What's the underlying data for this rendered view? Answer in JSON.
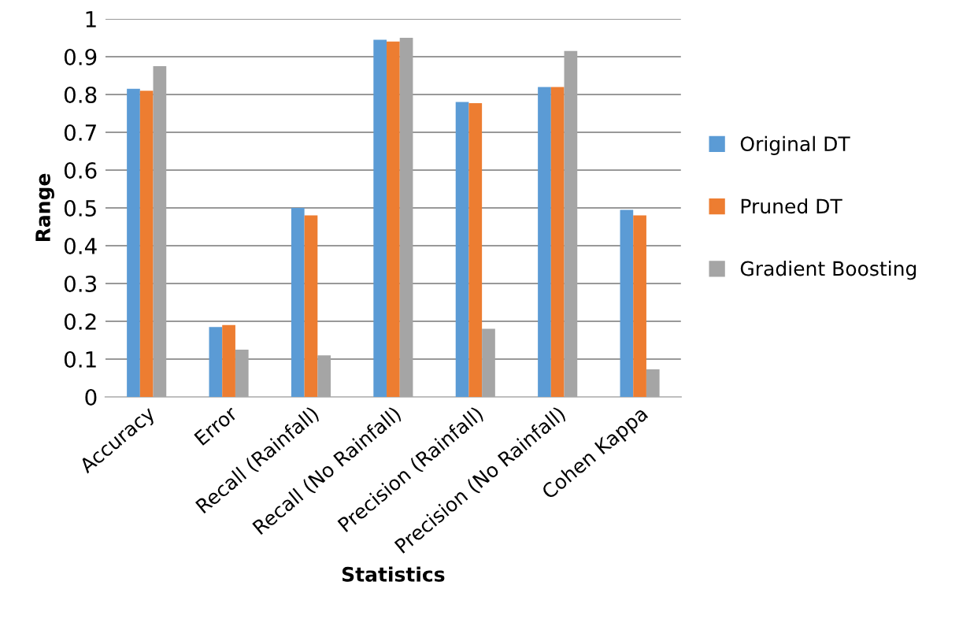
{
  "chart_data": {
    "type": "bar",
    "xlabel": "Statistics",
    "ylabel": "Range",
    "categories": [
      "Accuracy",
      "Error",
      "Recall (Rainfall)",
      "Recall (No Rainfall)",
      "Precision (Rainfall)",
      "Precision (No Rainfall)",
      "Cohen Kappa"
    ],
    "series": [
      {
        "name": "Original DT",
        "color": "#5b9bd5",
        "values": [
          0.815,
          0.185,
          0.5,
          0.945,
          0.78,
          0.82,
          0.495
        ]
      },
      {
        "name": "Pruned DT",
        "color": "#ed7d31",
        "values": [
          0.81,
          0.19,
          0.48,
          0.94,
          0.777,
          0.82,
          0.48
        ]
      },
      {
        "name": "Gradient Boosting",
        "color": "#a5a5a5",
        "values": [
          0.875,
          0.125,
          0.11,
          0.95,
          0.18,
          0.915,
          0.073
        ]
      }
    ],
    "ylim": [
      0,
      1
    ],
    "yticks": [
      0,
      0.1,
      0.2,
      0.3,
      0.4,
      0.5,
      0.6,
      0.7,
      0.8,
      0.9,
      1
    ],
    "grid": "y",
    "legend": "right"
  }
}
